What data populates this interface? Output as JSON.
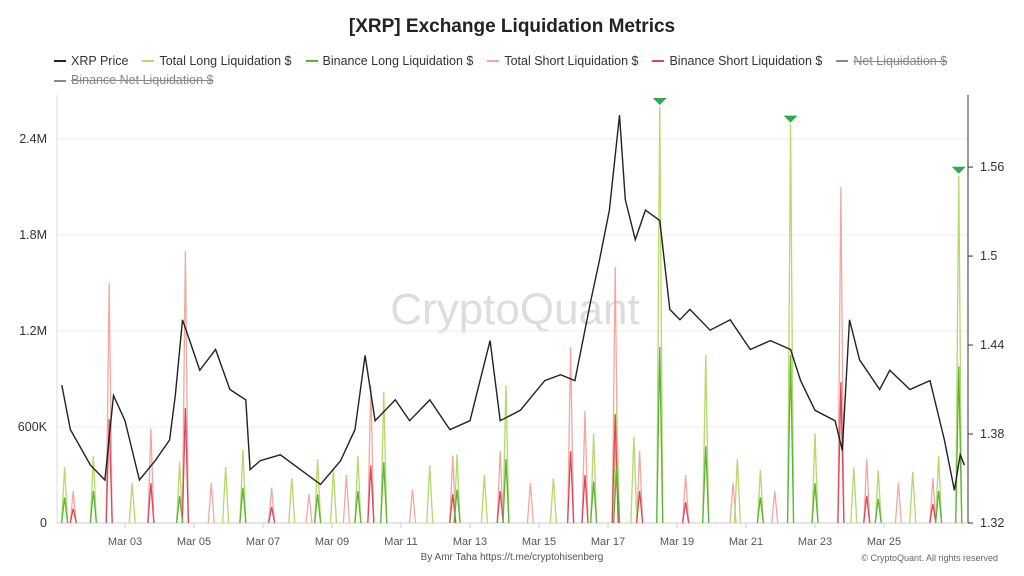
{
  "chart_data": {
    "type": "line",
    "title": "[XRP] Exchange Liquidation Metrics",
    "legend": [
      {
        "name": "XRP Price",
        "color": "#222222",
        "hidden": false
      },
      {
        "name": "Total Long Liquidation $",
        "color": "#b5d96a",
        "hidden": false
      },
      {
        "name": "Binance Long Liquidation $",
        "color": "#5cb338",
        "hidden": false
      },
      {
        "name": "Total Short Liquidation $",
        "color": "#f0a9a0",
        "hidden": false
      },
      {
        "name": "Binance Short Liquidation $",
        "color": "#d9485a",
        "hidden": false
      },
      {
        "name": "Net Liquidation $",
        "color": "#888888",
        "hidden": true
      },
      {
        "name": "Binance Net Liquidation $",
        "color": "#888888",
        "hidden": true
      }
    ],
    "x_ticks": [
      "Mar 03",
      "Mar 05",
      "Mar 07",
      "Mar 09",
      "Mar 11",
      "Mar 13",
      "Mar 15",
      "Mar 17",
      "Mar 19",
      "Mar 21",
      "Mar 23",
      "Mar 25"
    ],
    "left_axis": {
      "ticks": [
        "0",
        "600K",
        "1.2M",
        "1.8M",
        "2.4M"
      ],
      "range": [
        0,
        2700000
      ]
    },
    "right_axis": {
      "ticks": [
        "1.32",
        "1.38",
        "1.44",
        "1.5",
        "1.56"
      ],
      "range": [
        1.32,
        1.607
      ]
    },
    "grid": true,
    "legend_position": "top",
    "price": [
      [
        "Mar 01 04:00",
        1.413
      ],
      [
        "Mar 01 10:00",
        1.383
      ],
      [
        "Mar 02 00:00",
        1.359
      ],
      [
        "Mar 02 10:00",
        1.349
      ],
      [
        "Mar 02 16:00",
        1.406
      ],
      [
        "Mar 03 00:00",
        1.389
      ],
      [
        "Mar 03 10:00",
        1.349
      ],
      [
        "Mar 03 21:00",
        1.362
      ],
      [
        "Mar 04 07:00",
        1.376
      ],
      [
        "Mar 04 11:00",
        1.406
      ],
      [
        "Mar 04 16:00",
        1.457
      ],
      [
        "Mar 04 21:00",
        1.443
      ],
      [
        "Mar 05 04:00",
        1.423
      ],
      [
        "Mar 05 15:00",
        1.437
      ],
      [
        "Mar 06 01:00",
        1.41
      ],
      [
        "Mar 06 12:00",
        1.403
      ],
      [
        "Mar 06 15:00",
        1.356
      ],
      [
        "Mar 06 22:00",
        1.362
      ],
      [
        "Mar 07 12:00",
        1.366
      ],
      [
        "Mar 08 02:00",
        1.356
      ],
      [
        "Mar 08 16:00",
        1.346
      ],
      [
        "Mar 09 06:00",
        1.362
      ],
      [
        "Mar 09 16:00",
        1.383
      ],
      [
        "Mar 09 23:00",
        1.433
      ],
      [
        "Mar 10 06:00",
        1.389
      ],
      [
        "Mar 10 20:00",
        1.403
      ],
      [
        "Mar 11 06:00",
        1.389
      ],
      [
        "Mar 11 20:00",
        1.403
      ],
      [
        "Mar 12 10:00",
        1.383
      ],
      [
        "Mar 13 00:00",
        1.389
      ],
      [
        "Mar 13 14:00",
        1.443
      ],
      [
        "Mar 13 21:00",
        1.389
      ],
      [
        "Mar 14 11:00",
        1.396
      ],
      [
        "Mar 15 04:00",
        1.416
      ],
      [
        "Mar 15 15:00",
        1.42
      ],
      [
        "Mar 16 01:00",
        1.416
      ],
      [
        "Mar 16 12:00",
        1.47
      ],
      [
        "Mar 16 18:00",
        1.497
      ],
      [
        "Mar 17 01:00",
        1.531
      ],
      [
        "Mar 17 08:00",
        1.595
      ],
      [
        "Mar 17 12:00",
        1.538
      ],
      [
        "Mar 17 19:00",
        1.511
      ],
      [
        "Mar 18 02:00",
        1.531
      ],
      [
        "Mar 18 12:00",
        1.524
      ],
      [
        "Mar 18 19:00",
        1.464
      ],
      [
        "Mar 19 02:00",
        1.457
      ],
      [
        "Mar 19 09:00",
        1.464
      ],
      [
        "Mar 19 23:00",
        1.45
      ],
      [
        "Mar 20 13:00",
        1.457
      ],
      [
        "Mar 21 03:00",
        1.437
      ],
      [
        "Mar 21 17:00",
        1.443
      ],
      [
        "Mar 22 07:00",
        1.437
      ],
      [
        "Mar 22 14:00",
        1.416
      ],
      [
        "Mar 23 00:00",
        1.396
      ],
      [
        "Mar 23 14:00",
        1.389
      ],
      [
        "Mar 23 19:00",
        1.369
      ],
      [
        "Mar 24 00:00",
        1.457
      ],
      [
        "Mar 24 07:00",
        1.43
      ],
      [
        "Mar 24 21:00",
        1.41
      ],
      [
        "Mar 25 04:00",
        1.423
      ],
      [
        "Mar 25 18:00",
        1.41
      ],
      [
        "Mar 26 08:00",
        1.416
      ],
      [
        "Mar 26 18:00",
        1.376
      ],
      [
        "Mar 27 01:00",
        1.342
      ],
      [
        "Mar 27 05:00",
        1.366
      ],
      [
        "Mar 27 08:00",
        1.359
      ]
    ],
    "series": [
      {
        "name": "Total Long Liquidation $",
        "points": [
          [
            "Mar 01 06:00",
            350000
          ],
          [
            "Mar 02 02:00",
            420000
          ],
          [
            "Mar 03 05:00",
            250000
          ],
          [
            "Mar 04 14:00",
            380000
          ],
          [
            "Mar 05 22:00",
            350000
          ],
          [
            "Mar 06 10:00",
            460000
          ],
          [
            "Mar 07 20:00",
            280000
          ],
          [
            "Mar 08 14:00",
            400000
          ],
          [
            "Mar 09 01:00",
            330000
          ],
          [
            "Mar 09 18:00",
            420000
          ],
          [
            "Mar 10 12:00",
            820000
          ],
          [
            "Mar 11 20:00",
            360000
          ],
          [
            "Mar 12 15:00",
            430000
          ],
          [
            "Mar 13 10:00",
            300000
          ],
          [
            "Mar 14 01:00",
            860000
          ],
          [
            "Mar 15 10:00",
            280000
          ],
          [
            "Mar 16 14:00",
            560000
          ],
          [
            "Mar 17 06:00",
            720000
          ],
          [
            "Mar 17 18:00",
            540000
          ],
          [
            "Mar 18 12:00",
            2600000
          ],
          [
            "Mar 19 20:00",
            1050000
          ],
          [
            "Mar 20 18:00",
            400000
          ],
          [
            "Mar 21 10:00",
            330000
          ],
          [
            "Mar 22 07:00",
            2490000
          ],
          [
            "Mar 23 00:00",
            560000
          ],
          [
            "Mar 24 03:00",
            350000
          ],
          [
            "Mar 24 20:00",
            330000
          ],
          [
            "Mar 25 20:00",
            320000
          ],
          [
            "Mar 26 14:00",
            420000
          ],
          [
            "Mar 27 04:00",
            2170000
          ]
        ]
      },
      {
        "name": "Binance Long Liquidation $",
        "points": [
          [
            "Mar 01 06:00",
            160000
          ],
          [
            "Mar 02 02:00",
            200000
          ],
          [
            "Mar 04 14:00",
            170000
          ],
          [
            "Mar 06 10:00",
            220000
          ],
          [
            "Mar 08 14:00",
            180000
          ],
          [
            "Mar 09 18:00",
            200000
          ],
          [
            "Mar 10 12:00",
            380000
          ],
          [
            "Mar 12 15:00",
            210000
          ],
          [
            "Mar 14 01:00",
            400000
          ],
          [
            "Mar 16 14:00",
            260000
          ],
          [
            "Mar 17 06:00",
            350000
          ],
          [
            "Mar 18 12:00",
            1100000
          ],
          [
            "Mar 19 20:00",
            480000
          ],
          [
            "Mar 21 10:00",
            160000
          ],
          [
            "Mar 22 07:00",
            1050000
          ],
          [
            "Mar 23 00:00",
            250000
          ],
          [
            "Mar 24 20:00",
            150000
          ],
          [
            "Mar 26 14:00",
            200000
          ],
          [
            "Mar 27 04:00",
            980000
          ]
        ]
      },
      {
        "name": "Total Short Liquidation $",
        "points": [
          [
            "Mar 01 12:00",
            200000
          ],
          [
            "Mar 02 13:00",
            1500000
          ],
          [
            "Mar 03 18:00",
            590000
          ],
          [
            "Mar 04 18:00",
            1700000
          ],
          [
            "Mar 05 12:00",
            250000
          ],
          [
            "Mar 07 06:00",
            220000
          ],
          [
            "Mar 08 08:00",
            180000
          ],
          [
            "Mar 09 10:00",
            300000
          ],
          [
            "Mar 10 03:00",
            860000
          ],
          [
            "Mar 11 08:00",
            210000
          ],
          [
            "Mar 12 12:00",
            420000
          ],
          [
            "Mar 13 21:00",
            450000
          ],
          [
            "Mar 14 18:00",
            250000
          ],
          [
            "Mar 15 22:00",
            1100000
          ],
          [
            "Mar 16 08:00",
            700000
          ],
          [
            "Mar 17 05:00",
            1600000
          ],
          [
            "Mar 17 22:00",
            450000
          ],
          [
            "Mar 19 06:00",
            300000
          ],
          [
            "Mar 20 15:00",
            250000
          ],
          [
            "Mar 21 20:00",
            200000
          ],
          [
            "Mar 23 18:00",
            2100000
          ],
          [
            "Mar 24 12:00",
            400000
          ],
          [
            "Mar 25 10:00",
            250000
          ],
          [
            "Mar 26 10:00",
            280000
          ]
        ]
      },
      {
        "name": "Binance Short Liquidation $",
        "points": [
          [
            "Mar 01 12:00",
            90000
          ],
          [
            "Mar 02 13:00",
            650000
          ],
          [
            "Mar 03 18:00",
            250000
          ],
          [
            "Mar 04 18:00",
            720000
          ],
          [
            "Mar 07 06:00",
            100000
          ],
          [
            "Mar 10 03:00",
            360000
          ],
          [
            "Mar 12 12:00",
            180000
          ],
          [
            "Mar 13 21:00",
            200000
          ],
          [
            "Mar 15 22:00",
            450000
          ],
          [
            "Mar 16 08:00",
            300000
          ],
          [
            "Mar 17 05:00",
            680000
          ],
          [
            "Mar 17 22:00",
            200000
          ],
          [
            "Mar 19 06:00",
            130000
          ],
          [
            "Mar 23 18:00",
            880000
          ],
          [
            "Mar 24 12:00",
            170000
          ],
          [
            "Mar 26 10:00",
            120000
          ]
        ]
      }
    ],
    "markers": [
      "Mar 18 12:00",
      "Mar 22 07:00",
      "Mar 27 04:00"
    ],
    "watermark": "CryptoQuant"
  },
  "footer": {
    "by": "By Amr Taha",
    "link": "https://t.me/cryptohisenberg",
    "copyright": "© CryptoQuant. All rights reserved"
  }
}
